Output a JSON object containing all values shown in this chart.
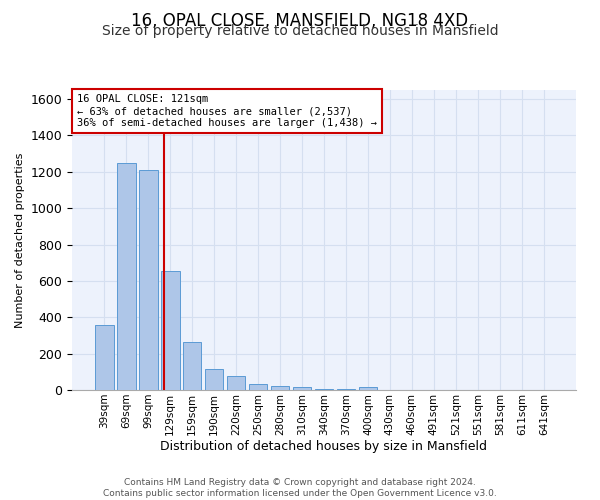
{
  "title1": "16, OPAL CLOSE, MANSFIELD, NG18 4XD",
  "title2": "Size of property relative to detached houses in Mansfield",
  "xlabel": "Distribution of detached houses by size in Mansfield",
  "ylabel": "Number of detached properties",
  "categories": [
    "39sqm",
    "69sqm",
    "99sqm",
    "129sqm",
    "159sqm",
    "190sqm",
    "220sqm",
    "250sqm",
    "280sqm",
    "310sqm",
    "340sqm",
    "370sqm",
    "400sqm",
    "430sqm",
    "460sqm",
    "491sqm",
    "521sqm",
    "551sqm",
    "581sqm",
    "611sqm",
    "641sqm"
  ],
  "values": [
    360,
    1250,
    1210,
    655,
    265,
    118,
    75,
    35,
    22,
    15,
    5,
    3,
    14,
    0,
    0,
    0,
    0,
    0,
    0,
    0,
    0
  ],
  "bar_color": "#aec6e8",
  "bar_edge_color": "#5b9bd5",
  "vline_color": "#cc0000",
  "annotation_line1": "16 OPAL CLOSE: 121sqm",
  "annotation_line2": "← 63% of detached houses are smaller (2,537)",
  "annotation_line3": "36% of semi-detached houses are larger (1,438) →",
  "annotation_box_color": "#ffffff",
  "annotation_box_edge": "#cc0000",
  "grid_color": "#d5dff0",
  "background_color": "#edf2fc",
  "footer": "Contains HM Land Registry data © Crown copyright and database right 2024.\nContains public sector information licensed under the Open Government Licence v3.0.",
  "ylim": [
    0,
    1650
  ],
  "title1_fontsize": 12,
  "title2_fontsize": 10,
  "ylabel_fontsize": 8,
  "xlabel_fontsize": 9,
  "tick_fontsize": 7.5,
  "footer_fontsize": 6.5
}
